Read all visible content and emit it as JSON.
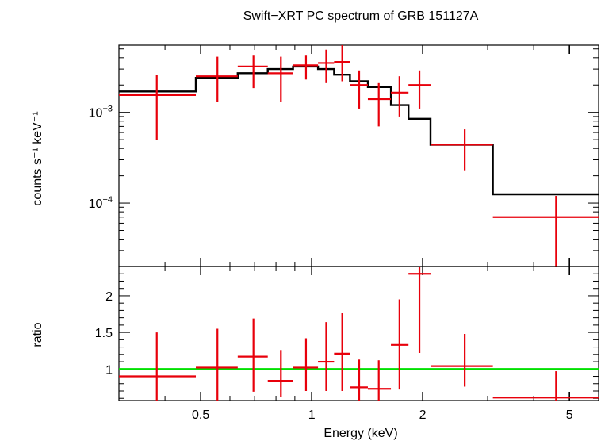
{
  "chart_data": [
    {
      "type": "scatter",
      "title": "Swift−XRT PC spectrum of GRB 151127A",
      "ylabel": "counts s⁻¹ keV⁻¹",
      "yscale": "log",
      "xscale": "log",
      "xlim": [
        0.3,
        6.0
      ],
      "ylim": [
        2e-05,
        0.0055
      ],
      "y_ticks": [
        {
          "value": 0.001,
          "label_base": "10",
          "label_exp": "−3"
        },
        {
          "value": 0.0001,
          "label_base": "10",
          "label_exp": "−4"
        }
      ],
      "data_points": {
        "color": "#e8000b",
        "x": [
          0.38,
          0.555,
          0.695,
          0.825,
          0.965,
          1.095,
          1.21,
          1.345,
          1.52,
          1.73,
          1.96,
          2.6,
          4.6
        ],
        "x_lo": [
          0.3,
          0.485,
          0.63,
          0.76,
          0.89,
          1.04,
          1.15,
          1.27,
          1.42,
          1.64,
          1.83,
          2.1,
          3.1
        ],
        "x_hi": [
          0.485,
          0.63,
          0.76,
          0.89,
          1.04,
          1.15,
          1.27,
          1.42,
          1.64,
          1.83,
          2.1,
          3.1,
          6.0
        ],
        "y": [
          0.00155,
          0.0025,
          0.0032,
          0.0027,
          0.0033,
          0.0035,
          0.0036,
          0.002,
          0.0014,
          0.00165,
          0.002,
          0.00044,
          7e-05
        ],
        "y_lo": [
          0.0005,
          0.0013,
          0.00185,
          0.0013,
          0.0023,
          0.0021,
          0.0022,
          0.0011,
          0.0007,
          0.0009,
          0.0011,
          0.00023,
          2e-05
        ],
        "y_hi": [
          0.0026,
          0.0041,
          0.0043,
          0.0041,
          0.0043,
          0.0049,
          0.0055,
          0.0029,
          0.0021,
          0.0025,
          0.0029,
          0.00065,
          0.00012
        ]
      },
      "model_step": {
        "color": "#000000",
        "edges": [
          0.3,
          0.485,
          0.63,
          0.76,
          0.89,
          1.04,
          1.15,
          1.27,
          1.42,
          1.64,
          1.83,
          2.1,
          3.1,
          6.0
        ],
        "values": [
          0.0017,
          0.0024,
          0.0027,
          0.003,
          0.0032,
          0.003,
          0.0026,
          0.0022,
          0.0019,
          0.0012,
          0.00085,
          0.00044,
          0.000125
        ]
      }
    },
    {
      "type": "scatter",
      "ylabel": "ratio",
      "xlabel": "Energy (keV)",
      "xscale": "log",
      "xlim": [
        0.3,
        6.0
      ],
      "ylim": [
        0.57,
        2.4
      ],
      "y_ticks": [
        1,
        1.5,
        2
      ],
      "x_ticks": [
        {
          "value": 0.5,
          "label": "0.5"
        },
        {
          "value": 1,
          "label": "1"
        },
        {
          "value": 2,
          "label": "2"
        },
        {
          "value": 5,
          "label": "5"
        }
      ],
      "reference_line": {
        "value": 1,
        "color": "#00e000"
      },
      "data_points": {
        "color": "#e8000b",
        "x": [
          0.38,
          0.555,
          0.695,
          0.825,
          0.965,
          1.095,
          1.21,
          1.345,
          1.52,
          1.73,
          1.96,
          2.6,
          4.6
        ],
        "x_lo": [
          0.3,
          0.485,
          0.63,
          0.76,
          0.89,
          1.04,
          1.15,
          1.27,
          1.42,
          1.64,
          1.83,
          2.1,
          3.1
        ],
        "x_hi": [
          0.485,
          0.63,
          0.76,
          0.89,
          1.04,
          1.15,
          1.27,
          1.42,
          1.64,
          1.83,
          2.1,
          3.1,
          6.0
        ],
        "y": [
          0.9,
          1.02,
          1.17,
          0.84,
          1.02,
          1.1,
          1.21,
          0.75,
          0.73,
          1.33,
          2.3,
          1.04,
          0.61
        ],
        "y_lo": [
          0.57,
          0.57,
          0.69,
          0.62,
          0.7,
          0.7,
          0.7,
          0.57,
          0.57,
          0.72,
          1.22,
          0.76,
          0.57
        ],
        "y_hi": [
          1.5,
          1.55,
          1.69,
          1.26,
          1.42,
          1.64,
          1.77,
          1.13,
          1.12,
          1.95,
          2.4,
          1.48,
          0.97
        ]
      }
    }
  ]
}
